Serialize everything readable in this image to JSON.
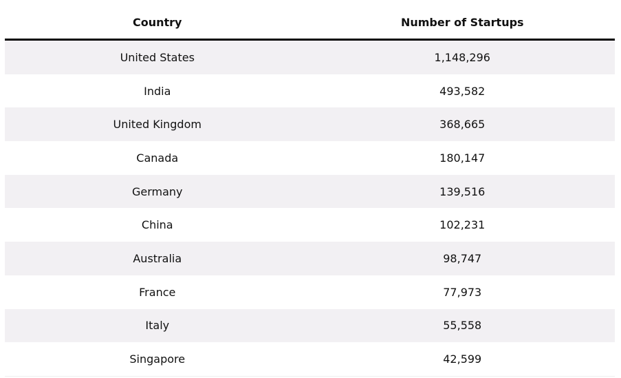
{
  "table": {
    "header": [
      "Country",
      "Number of Startups"
    ],
    "rows": [
      [
        "United States",
        "1,148,296"
      ],
      [
        "India",
        "493,582"
      ],
      [
        "United Kingdom",
        "368,665"
      ],
      [
        "Canada",
        "180,147"
      ],
      [
        "Germany",
        "139,516"
      ],
      [
        "China",
        "102,231"
      ],
      [
        "Australia",
        "98,747"
      ],
      [
        "France",
        "77,973"
      ],
      [
        "Italy",
        "55,558"
      ],
      [
        "Singapore",
        "42,599"
      ]
    ]
  }
}
